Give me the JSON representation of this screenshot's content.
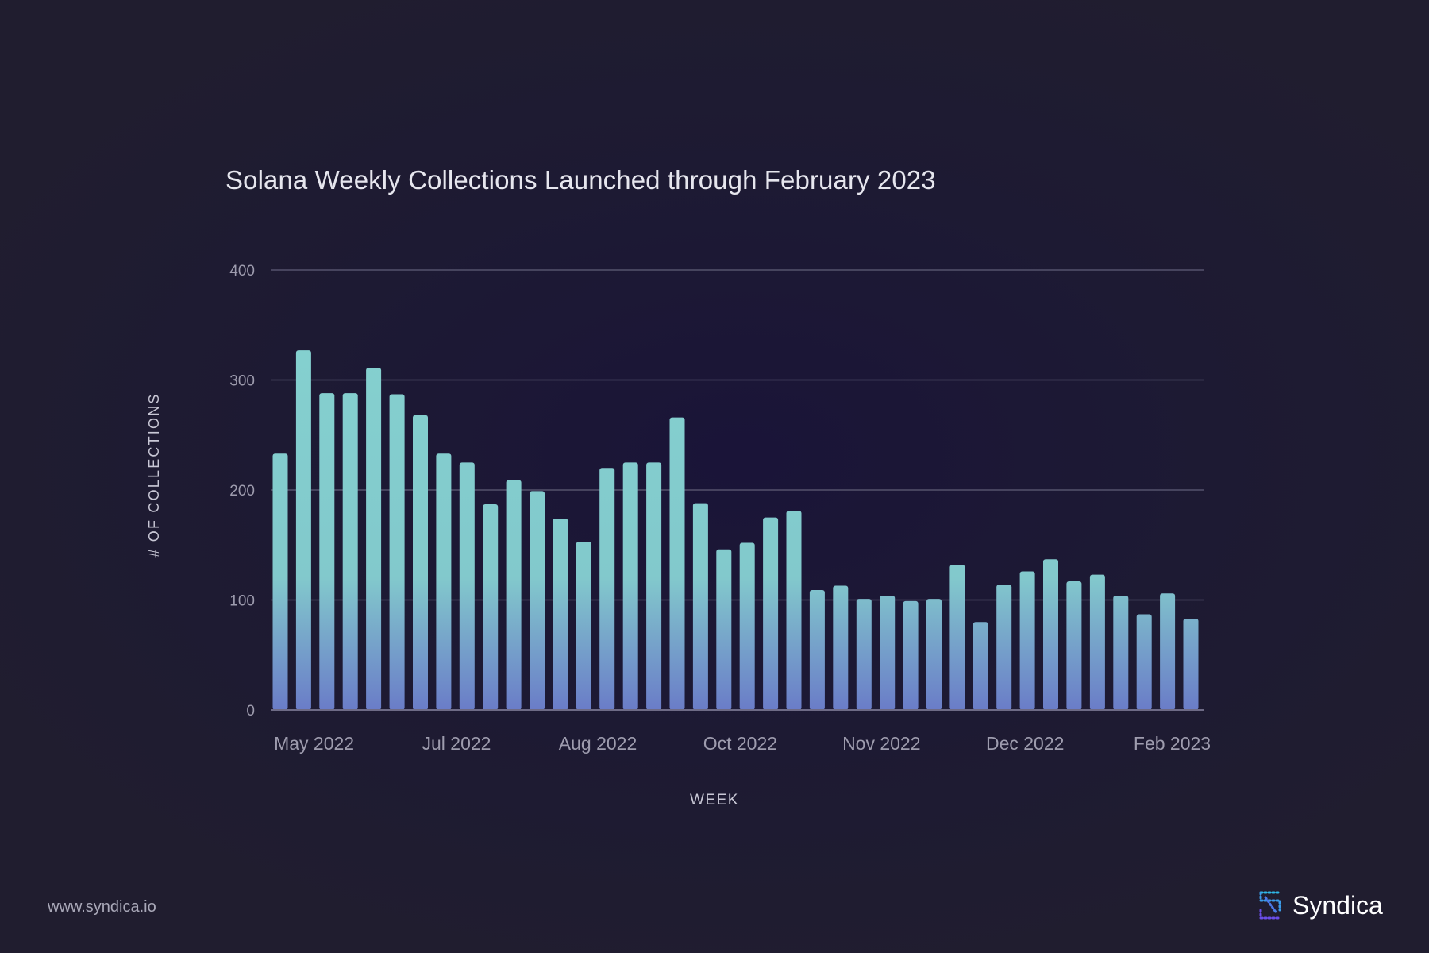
{
  "chart_data": {
    "type": "bar",
    "title": "Solana Weekly Collections Launched through February 2023",
    "xlabel": "WEEK",
    "ylabel": "# OF COLLECTIONS",
    "ylim": [
      0,
      400
    ],
    "yticks": [
      0,
      100,
      200,
      300,
      400
    ],
    "xtick_labels": [
      "May 2022",
      "Jul 2022",
      "Aug 2022",
      "Oct 2022",
      "Nov 2022",
      "Dec 2022",
      "Feb 2023"
    ],
    "xtick_bar_index": [
      1.45,
      7.55,
      13.6,
      19.7,
      25.75,
      31.9,
      38.2
    ],
    "grid": true,
    "values": [
      233,
      327,
      288,
      288,
      311,
      287,
      268,
      233,
      225,
      187,
      209,
      199,
      174,
      153,
      220,
      225,
      225,
      266,
      188,
      146,
      152,
      175,
      181,
      109,
      113,
      101,
      104,
      99,
      101,
      132,
      80,
      114,
      126,
      137,
      117,
      123,
      104,
      87,
      106,
      83
    ],
    "colors": {
      "bar_top": "#84d0cf",
      "bar_bottom": "#6a7cc8",
      "grid": "#55526c",
      "tick": "#9e9cae"
    }
  },
  "footer": {
    "url": "www.syndica.io"
  },
  "brand": {
    "name": "Syndica",
    "icon": "syndica-logo-icon"
  }
}
